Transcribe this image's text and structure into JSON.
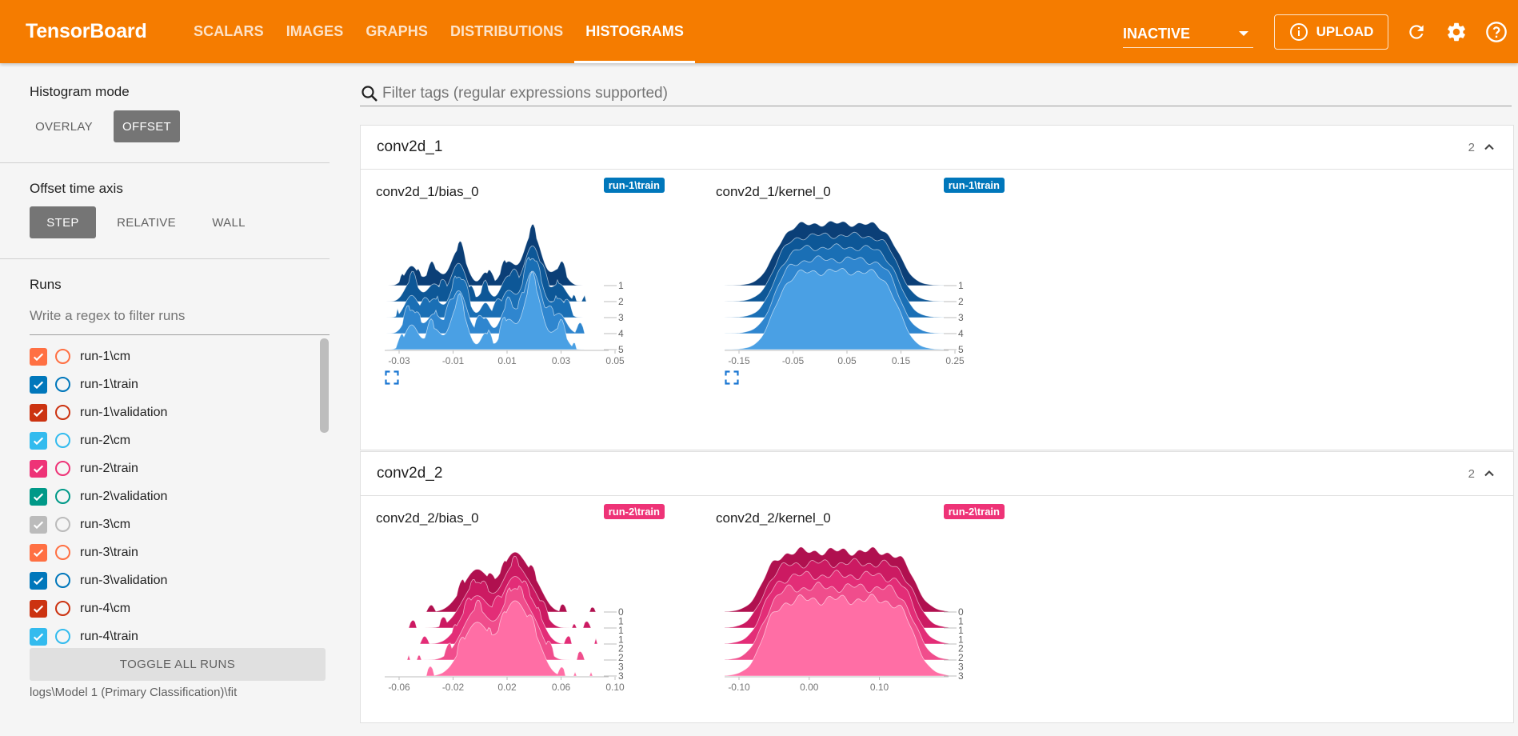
{
  "app": {
    "title": "TensorBoard",
    "tabs": [
      "SCALARS",
      "IMAGES",
      "GRAPHS",
      "DISTRIBUTIONS",
      "HISTOGRAMS"
    ],
    "active_tab": "HISTOGRAMS",
    "status_select": "INACTIVE",
    "upload_label": "UPLOAD"
  },
  "sidebar": {
    "histogram_mode_title": "Histogram mode",
    "histogram_modes": [
      "OVERLAY",
      "OFFSET"
    ],
    "active_histogram_mode": "OFFSET",
    "time_axis_title": "Offset time axis",
    "time_axis_modes": [
      "STEP",
      "RELATIVE",
      "WALL"
    ],
    "active_time_axis": "STEP",
    "runs_title": "Runs",
    "runs_filter_placeholder": "Write a regex to filter runs",
    "runs": [
      {
        "label": "run-1\\cm",
        "color": "#ff7043",
        "checked": true
      },
      {
        "label": "run-1\\train",
        "color": "#0077bb",
        "checked": true
      },
      {
        "label": "run-1\\validation",
        "color": "#cc3311",
        "checked": true
      },
      {
        "label": "run-2\\cm",
        "color": "#33bbee",
        "checked": true
      },
      {
        "label": "run-2\\train",
        "color": "#ee3377",
        "checked": true
      },
      {
        "label": "run-2\\validation",
        "color": "#009988",
        "checked": true
      },
      {
        "label": "run-3\\cm",
        "color": "#bbbbbb",
        "checked": true
      },
      {
        "label": "run-3\\train",
        "color": "#ff7043",
        "checked": true
      },
      {
        "label": "run-3\\validation",
        "color": "#0077bb",
        "checked": true
      },
      {
        "label": "run-4\\cm",
        "color": "#cc3311",
        "checked": true
      },
      {
        "label": "run-4\\train",
        "color": "#33bbee",
        "checked": true
      }
    ],
    "toggle_all_label": "TOGGLE ALL RUNS",
    "logdir": "logs\\Model 1 (Primary Classification)\\fit"
  },
  "main": {
    "filter_placeholder": "Filter tags (regular expressions supported)",
    "sections": [
      {
        "title": "conv2d_1",
        "count": "2",
        "charts": [
          {
            "tag": "conv2d_1/bias_0",
            "run": "run-1\\train",
            "run_color": "#0077bb",
            "palette": "blue",
            "shape": "bias",
            "x_ticks": [
              "-0.03",
              "-0.01",
              "0.01",
              "0.03",
              "0.05"
            ],
            "y_ticks": [
              "1",
              "2",
              "3",
              "4",
              "5"
            ]
          },
          {
            "tag": "conv2d_1/kernel_0",
            "run": "run-1\\train",
            "run_color": "#0077bb",
            "palette": "blue",
            "shape": "kernel",
            "x_ticks": [
              "-0.15",
              "-0.05",
              "0.05",
              "0.15",
              "0.25"
            ],
            "y_ticks": [
              "1",
              "2",
              "3",
              "4",
              "5"
            ]
          }
        ]
      },
      {
        "title": "conv2d_2",
        "count": "2",
        "charts": [
          {
            "tag": "conv2d_2/bias_0",
            "run": "run-2\\train",
            "run_color": "#ee3377",
            "palette": "pink",
            "shape": "bias2",
            "x_ticks": [
              "-0.06",
              "-0.02",
              "0.02",
              "0.06",
              "0.10"
            ],
            "y_ticks": [
              "0",
              "1",
              "1",
              "1",
              "2",
              "2",
              "3",
              "3"
            ]
          },
          {
            "tag": "conv2d_2/kernel_0",
            "run": "run-2\\train",
            "run_color": "#ee3377",
            "palette": "pink",
            "shape": "kernel2",
            "x_ticks": [
              "-0.10",
              "0.00",
              "0.10"
            ],
            "y_ticks": [
              "0",
              "1",
              "1",
              "1",
              "2",
              "2",
              "3",
              "3"
            ]
          }
        ]
      }
    ]
  },
  "colors": {
    "topbar": "#f57c00",
    "blue_palette": [
      "#0b3f77",
      "#0d5797",
      "#1a6fb5",
      "#2f86cf",
      "#4aa0e4",
      "#5eb0f0"
    ],
    "pink_palette": [
      "#b0104f",
      "#cc1a62",
      "#e32d77",
      "#f04d8c",
      "#ff6ea5"
    ]
  }
}
